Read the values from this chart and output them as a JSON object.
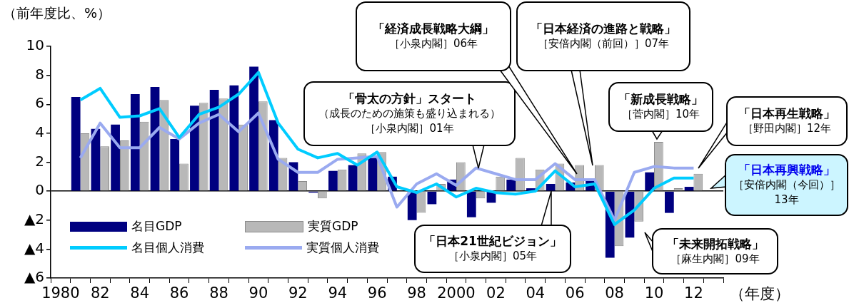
{
  "chart_data": {
    "type": "bar",
    "ylabel": "（前年度比、%）",
    "xlabel": "（年度）",
    "categories": [
      "1980",
      null,
      "82",
      null,
      "84",
      null,
      "86",
      null,
      "88",
      null,
      "90",
      null,
      "92",
      null,
      "94",
      null,
      "96",
      null,
      "98",
      null,
      "2000",
      null,
      "02",
      null,
      "04",
      null,
      "06",
      null,
      "08",
      null,
      "10",
      null,
      "12",
      null
    ],
    "series": [
      {
        "name": "名目GDP",
        "color": "#000080",
        "values": [
          null,
          6.5,
          4.3,
          4.6,
          6.7,
          7.2,
          3.6,
          5.9,
          7.0,
          7.3,
          8.6,
          4.9,
          2.0,
          -0.1,
          1.4,
          1.8,
          2.3,
          1.0,
          -2.0,
          -0.9,
          0.8,
          -1.8,
          -0.8,
          0.8,
          0.2,
          0.5,
          0.6,
          0.7,
          -4.6,
          -3.2,
          1.3,
          -1.5,
          0.3,
          null
        ]
      },
      {
        "name": "実質GDP",
        "color": "#b8b8b8",
        "values": [
          null,
          4.0,
          3.1,
          3.5,
          4.8,
          6.3,
          1.9,
          6.1,
          6.4,
          4.6,
          6.2,
          2.3,
          0.7,
          -0.5,
          1.5,
          2.6,
          2.7,
          0.0,
          -1.5,
          0.5,
          2.0,
          -0.5,
          1.0,
          2.3,
          1.5,
          1.9,
          1.8,
          1.8,
          -3.8,
          -2.1,
          3.4,
          0.2,
          1.2,
          null
        ]
      },
      {
        "name": "名目個人消費",
        "type": "line",
        "color": "#00ccff",
        "values": [
          null,
          6.3,
          7.1,
          5.1,
          5.2,
          5.7,
          3.7,
          5.3,
          5.8,
          6.7,
          8.2,
          4.7,
          2.9,
          2.3,
          2.6,
          1.8,
          2.7,
          0.3,
          -0.1,
          0.5,
          -0.4,
          0.2,
          -0.1,
          -0.2,
          0.0,
          1.4,
          0.3,
          0.5,
          -2.3,
          -1.3,
          0.2,
          0.9,
          0.9,
          null
        ]
      },
      {
        "name": "実質個人消費",
        "type": "line",
        "color": "#9aaaf0",
        "values": [
          null,
          2.3,
          4.7,
          3.0,
          3.0,
          4.4,
          3.6,
          4.7,
          5.3,
          4.1,
          5.4,
          2.2,
          1.3,
          1.3,
          2.2,
          2.3,
          2.4,
          -1.1,
          0.5,
          1.2,
          0.4,
          1.6,
          1.2,
          0.8,
          0.8,
          1.9,
          0.8,
          0.8,
          -2.0,
          1.3,
          1.7,
          1.6,
          1.6,
          null
        ]
      }
    ],
    "ylim": [
      -6,
      10
    ],
    "yticks": [
      {
        "value": -6,
        "label": "▲6"
      },
      {
        "value": -4,
        "label": "▲4"
      },
      {
        "value": -2,
        "label": "▲2"
      },
      0,
      2,
      4,
      6,
      8,
      10
    ],
    "legend": "bottom left",
    "marker": "none",
    "annotations": [
      "「骨太の方針」スタート",
      "（成長のための施策も盛り込まれる）",
      "［小泉内閣］01年",
      "「経済成長戦略大綱」",
      "［小泉内閣］06年",
      "「日本経済の進路と戦略」",
      "［安倍内閣（前回）］07年",
      "「新成長戦略」",
      "［菅内閣］10年",
      "「日本再生戦略」",
      "［野田内閣］12年",
      "「日本再興戦略」",
      "［安倍内閣（今回）］",
      "13年",
      "「日本21世紀ビジョン」",
      "［小泉内閣］05年",
      "「未来開拓戦略」",
      "［麻生内閣］09年"
    ]
  }
}
